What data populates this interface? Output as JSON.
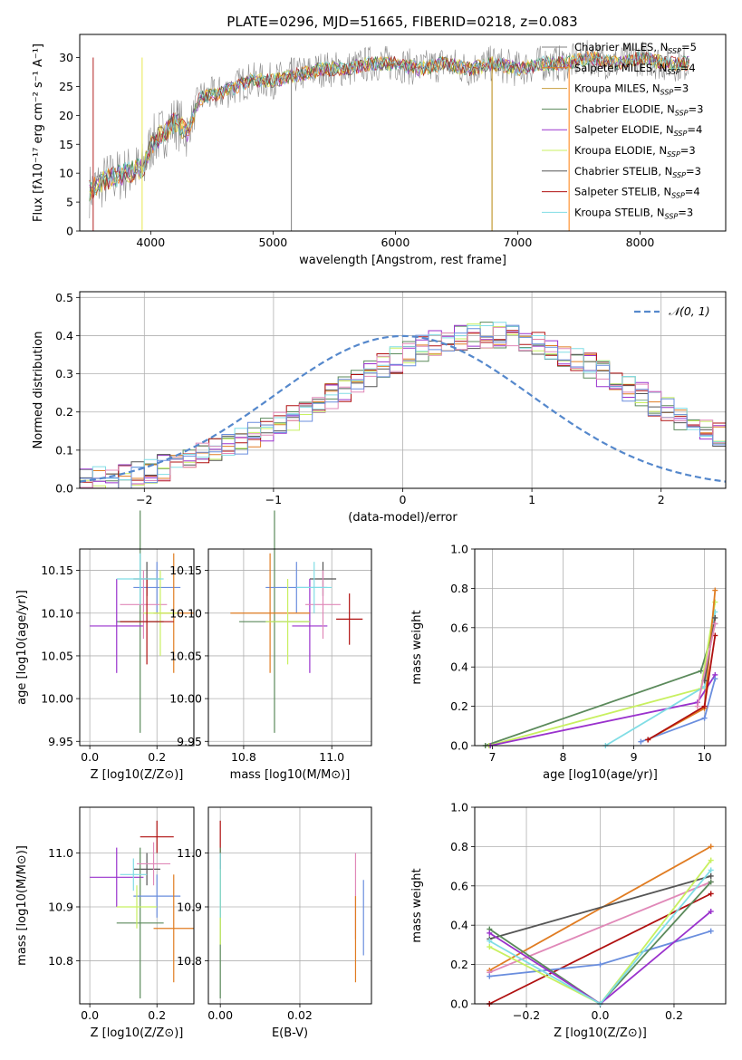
{
  "title": "PLATE=0296, MJD=51665, FIBERID=0218, z=0.083",
  "colors": {
    "Chabrier MILES": "#7f7f7f",
    "Salpeter MILES": "#ff7f0e",
    "Kroupa MILES": "#b8860b",
    "Chabrier ELODIE": "#2e8b57",
    "Salpeter ELODIE": "#9932cc",
    "Kroupa ELODIE": "#e8e850",
    "Chabrier STELIB": "#555555",
    "Salpeter STELIB": "#b22222",
    "Kroupa STELIB": "#7fd8e0",
    "green": "#5b8a5b",
    "purple": "#9a32cd",
    "yellow": "#c8f060",
    "dark": "#555555",
    "red": "#b01010",
    "cyan": "#80dde5",
    "blue": "#6a8ede",
    "orange": "#e07c22",
    "pink": "#e088b8",
    "gray": "#808080"
  },
  "chart_data": [
    {
      "type": "line",
      "xlabel": "wavelength [Angstrom, rest frame]",
      "ylabel": "Flux [fλ10⁻¹⁷ erg cm⁻² s⁻¹ A⁻¹]",
      "xlim": [
        3420,
        8700
      ],
      "ylim": [
        0,
        34
      ],
      "xticks": [
        4000,
        5000,
        6000,
        7000,
        8000
      ],
      "yticks": [
        0,
        5,
        10,
        15,
        20,
        25,
        30
      ],
      "legend_location": "upper-right",
      "legend": [
        {
          "label": "Chabrier MILES, N_SSP=5",
          "color": "gray"
        },
        {
          "label": "Salpeter MILES, N_SSP=4",
          "color": "orange"
        },
        {
          "label": "Kroupa MILES, N_SSP=3",
          "color": "#c8a040"
        },
        {
          "label": "Chabrier ELODIE, N_SSP=3",
          "color": "green"
        },
        {
          "label": "Salpeter ELODIE, N_SSP=4",
          "color": "purple"
        },
        {
          "label": "Kroupa ELODIE, N_SSP=3",
          "color": "yellow"
        },
        {
          "label": "Chabrier STELIB, N_SSP=3",
          "color": "dark"
        },
        {
          "label": "Salpeter STELIB, N_SSP=4",
          "color": "red"
        },
        {
          "label": "Kroupa STELIB, N_SSP=3",
          "color": "cyan"
        }
      ],
      "spectrum_envelope": {
        "x": [
          3500,
          3650,
          3800,
          3950,
          4000,
          4100,
          4200,
          4300,
          4400,
          4600,
          4800,
          5000,
          5200,
          5400,
          5600,
          5800,
          6000,
          6200,
          6400,
          6600,
          6800,
          7000,
          7200,
          7400,
          7600,
          7800,
          8000,
          8200,
          8400
        ],
        "y": [
          7,
          9,
          10,
          11,
          15,
          17,
          19,
          17,
          23,
          24,
          26,
          26,
          27,
          28,
          28,
          29,
          29,
          28,
          29,
          28,
          29,
          28,
          29,
          29,
          30,
          29,
          30,
          29,
          29
        ]
      }
    },
    {
      "type": "histogram",
      "xlabel": "(data-model)/error",
      "ylabel": "Normed distribution",
      "xlim": [
        -2.5,
        2.5
      ],
      "ylim": [
        0,
        0.515
      ],
      "xticks": [
        -2,
        -1,
        0,
        1,
        2
      ],
      "yticks": [
        0.0,
        0.1,
        0.2,
        0.3,
        0.4,
        0.5
      ],
      "legend": [
        {
          "label": "𝒩(0, 1)",
          "color": "#5588cc",
          "style": "dashed"
        }
      ],
      "bin_width": 0.1,
      "bin_start": -2.5,
      "mean_density": [
        0.018,
        0.022,
        0.027,
        0.033,
        0.04,
        0.047,
        0.054,
        0.064,
        0.073,
        0.085,
        0.097,
        0.109,
        0.123,
        0.138,
        0.153,
        0.17,
        0.186,
        0.205,
        0.223,
        0.243,
        0.262,
        0.281,
        0.3,
        0.319,
        0.336,
        0.352,
        0.366,
        0.378,
        0.388,
        0.396,
        0.4,
        0.402,
        0.4,
        0.396,
        0.388,
        0.378,
        0.366,
        0.352,
        0.336,
        0.319,
        0.3,
        0.281,
        0.262,
        0.243,
        0.223,
        0.205,
        0.186,
        0.17,
        0.153,
        0.138,
        0.123
      ],
      "normal_curve": {
        "mean": 0,
        "sigma": 1
      }
    },
    {
      "type": "errorbar",
      "xlabel": "Z [log10(Z/Z⊙)]",
      "ylabel": "age  [log10(age/yr)]",
      "xlim": [
        -0.03,
        0.31
      ],
      "ylim": [
        9.945,
        10.175
      ],
      "xticks": [
        0.0,
        0.2
      ],
      "yticks": [
        9.95,
        10.0,
        10.05,
        10.1,
        10.15
      ],
      "points": [
        {
          "x": 0.17,
          "y": 10.14,
          "xerr": 0.04,
          "yerr": 0.02,
          "color": "dark"
        },
        {
          "x": 0.15,
          "y": 10.09,
          "xerr": 0.07,
          "yerr": 0.13,
          "color": "green"
        },
        {
          "x": 0.08,
          "y": 10.085,
          "xerr": 0.08,
          "yerr": 0.055,
          "color": "purple"
        },
        {
          "x": 0.2,
          "y": 10.13,
          "xerr": 0.07,
          "yerr": 0.03,
          "color": "blue"
        },
        {
          "x": 0.25,
          "y": 10.1,
          "xerr": 0.06,
          "yerr": 0.07,
          "color": "orange"
        },
        {
          "x": 0.16,
          "y": 10.11,
          "xerr": 0.07,
          "yerr": 0.04,
          "color": "pink"
        },
        {
          "x": 0.21,
          "y": 10.1,
          "xerr": 0.05,
          "yerr": 0.05,
          "color": "yellow"
        },
        {
          "x": 0.17,
          "y": 10.09,
          "xerr": 0.08,
          "yerr": 0.05,
          "color": "red"
        },
        {
          "x": 0.15,
          "y": 10.14,
          "xerr": 0.07,
          "yerr": 0.03,
          "color": "cyan"
        }
      ]
    },
    {
      "type": "errorbar",
      "xlabel": "mass [log10(M/M⊙)]",
      "ylabel": "",
      "xlim": [
        10.72,
        11.09
      ],
      "ylim": [
        9.945,
        10.175
      ],
      "xticks": [
        10.8,
        11.0
      ],
      "yticks": [
        9.95,
        10.0,
        10.05,
        10.1,
        10.15
      ],
      "points": [
        {
          "x": 10.98,
          "y": 10.14,
          "xerr": 0.03,
          "yerr": 0.02,
          "color": "dark"
        },
        {
          "x": 10.87,
          "y": 10.09,
          "xerr": 0.08,
          "yerr": 0.13,
          "color": "green"
        },
        {
          "x": 10.95,
          "y": 10.085,
          "xerr": 0.04,
          "yerr": 0.055,
          "color": "purple"
        },
        {
          "x": 10.92,
          "y": 10.13,
          "xerr": 0.07,
          "yerr": 0.03,
          "color": "blue"
        },
        {
          "x": 10.86,
          "y": 10.1,
          "xerr": 0.09,
          "yerr": 0.07,
          "color": "orange"
        },
        {
          "x": 10.98,
          "y": 10.11,
          "xerr": 0.04,
          "yerr": 0.04,
          "color": "pink"
        },
        {
          "x": 10.9,
          "y": 10.09,
          "xerr": 0.05,
          "yerr": 0.05,
          "color": "yellow"
        },
        {
          "x": 11.04,
          "y": 10.093,
          "xerr": 0.03,
          "yerr": 0.03,
          "color": "red"
        },
        {
          "x": 10.96,
          "y": 10.13,
          "xerr": 0.04,
          "yerr": 0.03,
          "color": "cyan"
        }
      ]
    },
    {
      "type": "line",
      "xlabel": "age  [log10(age/yr)]",
      "ylabel": "mass weight",
      "xlim": [
        6.75,
        10.3
      ],
      "ylim": [
        0,
        1.0
      ],
      "xticks": [
        7,
        8,
        9,
        10
      ],
      "yticks": [
        0.0,
        0.2,
        0.4,
        0.6,
        0.8,
        1.0
      ],
      "series": [
        {
          "color": "green",
          "x": [
            6.9,
            9.95,
            10.15
          ],
          "y": [
            0.0,
            0.38,
            0.62
          ]
        },
        {
          "color": "yellow",
          "x": [
            6.95,
            9.95,
            10.15
          ],
          "y": [
            0.0,
            0.29,
            0.73
          ]
        },
        {
          "color": "purple",
          "x": [
            6.97,
            9.9,
            10.15
          ],
          "y": [
            0.0,
            0.22,
            0.36
          ]
        },
        {
          "color": "cyan",
          "x": [
            8.6,
            10.0,
            10.15
          ],
          "y": [
            0.0,
            0.3,
            0.68
          ]
        },
        {
          "color": "blue",
          "x": [
            9.1,
            10.0,
            10.15
          ],
          "y": [
            0.02,
            0.14,
            0.34
          ]
        },
        {
          "color": "orange",
          "x": [
            9.2,
            10.0,
            10.15
          ],
          "y": [
            0.03,
            0.19,
            0.79
          ]
        },
        {
          "color": "red",
          "x": [
            9.2,
            10.0,
            10.15
          ],
          "y": [
            0.03,
            0.2,
            0.56
          ]
        },
        {
          "color": "dark",
          "x": [
            10.0,
            10.15
          ],
          "y": [
            0.33,
            0.65
          ]
        },
        {
          "color": "pink",
          "x": [
            9.9,
            10.15
          ],
          "y": [
            0.2,
            0.62
          ]
        }
      ]
    },
    {
      "type": "errorbar",
      "xlabel": "Z [log10(Z/Z⊙)]",
      "ylabel": "mass [log10(M/M⊙)]",
      "xlim": [
        -0.03,
        0.31
      ],
      "ylim": [
        10.72,
        11.085
      ],
      "xticks": [
        0.0,
        0.2
      ],
      "yticks": [
        10.8,
        10.9,
        11.0
      ],
      "points": [
        {
          "x": 0.2,
          "y": 11.03,
          "xerr": 0.05,
          "yerr": 0.03,
          "color": "red"
        },
        {
          "x": 0.17,
          "y": 10.97,
          "xerr": 0.04,
          "yerr": 0.03,
          "color": "dark"
        },
        {
          "x": 0.08,
          "y": 10.955,
          "xerr": 0.08,
          "yerr": 0.055,
          "color": "purple"
        },
        {
          "x": 0.15,
          "y": 10.87,
          "xerr": 0.07,
          "yerr": 0.14,
          "color": "green"
        },
        {
          "x": 0.2,
          "y": 10.92,
          "xerr": 0.07,
          "yerr": 0.04,
          "color": "blue"
        },
        {
          "x": 0.25,
          "y": 10.86,
          "xerr": 0.06,
          "yerr": 0.1,
          "color": "orange"
        },
        {
          "x": 0.19,
          "y": 10.98,
          "xerr": 0.05,
          "yerr": 0.04,
          "color": "pink"
        },
        {
          "x": 0.14,
          "y": 10.9,
          "xerr": 0.06,
          "yerr": 0.04,
          "color": "yellow"
        },
        {
          "x": 0.13,
          "y": 10.96,
          "xerr": 0.04,
          "yerr": 0.03,
          "color": "cyan"
        }
      ]
    },
    {
      "type": "errorbar",
      "xlabel": "E(B-V)",
      "ylabel": "",
      "xlim": [
        -0.003,
        0.038
      ],
      "ylim": [
        10.72,
        11.085
      ],
      "xticks": [
        0.0,
        0.02
      ],
      "yticks": [
        10.8,
        10.9,
        11.0
      ],
      "points": [
        {
          "x": 0.0,
          "y": 10.97,
          "xerr": 0,
          "yerr": 0.09,
          "color": "red"
        },
        {
          "x": 0.0,
          "y": 10.87,
          "xerr": 0,
          "yerr": 0.14,
          "color": "green"
        },
        {
          "x": 0.0,
          "y": 10.9,
          "xerr": 0,
          "yerr": 0.07,
          "color": "yellow"
        },
        {
          "x": 0.0,
          "y": 10.94,
          "xerr": 0,
          "yerr": 0.06,
          "color": "cyan"
        },
        {
          "x": 0.034,
          "y": 10.92,
          "xerr": 0,
          "yerr": 0.08,
          "color": "pink"
        },
        {
          "x": 0.034,
          "y": 10.84,
          "xerr": 0,
          "yerr": 0.08,
          "color": "orange"
        },
        {
          "x": 0.036,
          "y": 10.88,
          "xerr": 0,
          "yerr": 0.07,
          "color": "blue"
        }
      ]
    },
    {
      "type": "line",
      "xlabel": "Z [log10(Z/Z⊙)]",
      "ylabel": "mass weight",
      "xlim": [
        -0.34,
        0.34
      ],
      "ylim": [
        0,
        1.0
      ],
      "xticks": [
        -0.2,
        0.0,
        0.2
      ],
      "yticks": [
        0.0,
        0.2,
        0.4,
        0.6,
        0.8,
        1.0
      ],
      "series": [
        {
          "color": "orange",
          "x": [
            -0.3,
            0.3
          ],
          "y": [
            0.17,
            0.8
          ]
        },
        {
          "color": "dark",
          "x": [
            -0.3,
            0.3
          ],
          "y": [
            0.33,
            0.65
          ]
        },
        {
          "color": "pink",
          "x": [
            -0.3,
            0.3
          ],
          "y": [
            0.16,
            0.62
          ]
        },
        {
          "color": "red",
          "x": [
            -0.3,
            -0.3,
            0.3
          ],
          "y": [
            0.0,
            0.0,
            0.56
          ]
        },
        {
          "color": "blue",
          "x": [
            -0.3,
            0.0,
            0.3
          ],
          "y": [
            0.14,
            0.2,
            0.37
          ]
        },
        {
          "color": "green",
          "x": [
            -0.3,
            0.0,
            0.3
          ],
          "y": [
            0.38,
            0.0,
            0.62
          ]
        },
        {
          "color": "yellow",
          "x": [
            -0.3,
            0.0,
            0.3
          ],
          "y": [
            0.29,
            0.0,
            0.73
          ]
        },
        {
          "color": "purple",
          "x": [
            -0.3,
            0.0,
            0.3
          ],
          "y": [
            0.36,
            0.0,
            0.47
          ]
        },
        {
          "color": "cyan",
          "x": [
            -0.3,
            0.0,
            0.3
          ],
          "y": [
            0.32,
            0.0,
            0.68
          ]
        }
      ]
    }
  ]
}
